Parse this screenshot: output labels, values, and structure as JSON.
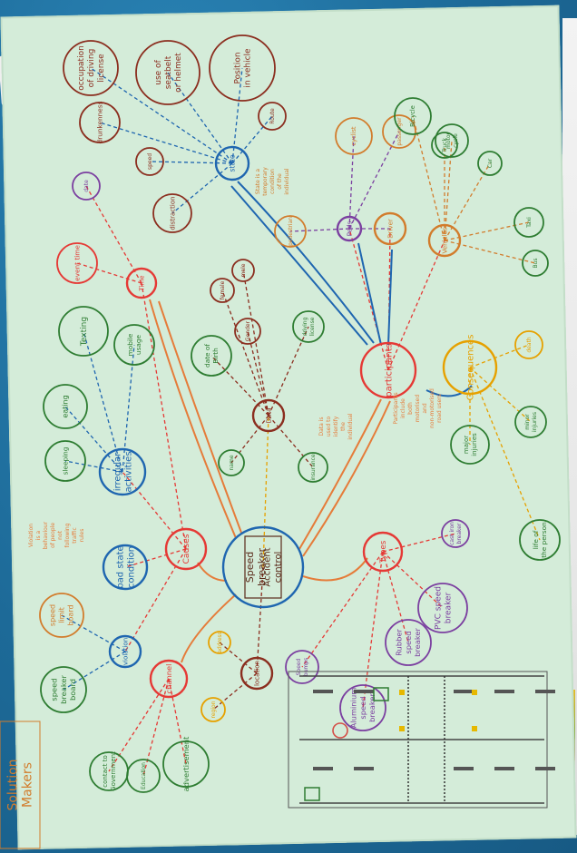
{
  "photo": {
    "subject": "Hand-drawn mind map poster on green paper",
    "device_label": "ⓜ"
  },
  "mindmap": {
    "center_title": "Speed breaker Accident control",
    "main_nodes": [
      {
        "key": "causes",
        "label": "Causes",
        "color": "#e53935"
      },
      {
        "key": "types",
        "label": "Types",
        "color": "#e53935"
      },
      {
        "key": "participants",
        "label": "participants",
        "color": "#e53935"
      },
      {
        "key": "consequences",
        "label": "Consequences",
        "color": "#e6a100"
      },
      {
        "key": "channel",
        "label": "channel",
        "color": "#e53935"
      },
      {
        "key": "location",
        "label": "location",
        "color": "#8b2e1f"
      },
      {
        "key": "data",
        "label": "Data",
        "color": "#8b2e1f"
      },
      {
        "key": "time",
        "label": "Time",
        "color": "#e53935"
      },
      {
        "key": "state",
        "label": "state",
        "color": "#1f66b0"
      },
      {
        "key": "peds",
        "label": "Peds",
        "color": "#7b3fa0"
      },
      {
        "key": "driver",
        "label": "Driver",
        "color": "#d27c2c"
      },
      {
        "key": "vehicles",
        "label": "Vehicles",
        "color": "#d27c2c"
      },
      {
        "key": "irregular",
        "label": "irregular activities",
        "color": "#1f66b0"
      },
      {
        "key": "badstate",
        "label": "bad state condition",
        "color": "#1f66b0"
      },
      {
        "key": "violation",
        "label": "violation",
        "color": "#1f66b0"
      }
    ],
    "leaf_nodes": [
      {
        "label": "Position in vehicle",
        "color": "#8b2e1f"
      },
      {
        "label": "use of seatbelt or helmet",
        "color": "#8b2e1f"
      },
      {
        "label": "occupation of driving license",
        "color": "#8b2e1f"
      },
      {
        "label": "Route",
        "color": "#8b2e1f"
      },
      {
        "label": "speed",
        "color": "#8b2e1f"
      },
      {
        "label": "drunkenness",
        "color": "#8b2e1f"
      },
      {
        "label": "distraction",
        "color": "#8b2e1f"
      },
      {
        "label": "date",
        "color": "#7b3fa0"
      },
      {
        "label": "event time",
        "color": "#e53935"
      },
      {
        "label": "Texting",
        "color": "#2e7d32"
      },
      {
        "label": "mobile usage",
        "color": "#2e7d32"
      },
      {
        "label": "eating",
        "color": "#2e7d32"
      },
      {
        "label": "sleeping",
        "color": "#2e7d32"
      },
      {
        "label": "male",
        "color": "#8b2e1f"
      },
      {
        "label": "female",
        "color": "#8b2e1f"
      },
      {
        "label": "Gender",
        "color": "#8b2e1f"
      },
      {
        "label": "date of Birth",
        "color": "#2e7d32"
      },
      {
        "label": "name",
        "color": "#2e7d32"
      },
      {
        "label": "driving license",
        "color": "#2e7d32"
      },
      {
        "label": "insurance",
        "color": "#2e7d32"
      },
      {
        "label": "pedestrian",
        "color": "#d27c2c"
      },
      {
        "label": "cyclist",
        "color": "#d27c2c"
      },
      {
        "label": "passenger",
        "color": "#d27c2c"
      },
      {
        "label": "Bicycle",
        "color": "#2e7d32"
      },
      {
        "label": "Truck",
        "color": "#2e7d32"
      },
      {
        "label": "motor cycle",
        "color": "#2e7d32"
      },
      {
        "label": "Car",
        "color": "#2e7d32"
      },
      {
        "label": "Taxi",
        "color": "#2e7d32"
      },
      {
        "label": "Bus",
        "color": "#2e7d32"
      },
      {
        "label": "death",
        "color": "#e6a100"
      },
      {
        "label": "minor injuries",
        "color": "#2e7d32"
      },
      {
        "label": "major injuries",
        "color": "#2e7d32"
      },
      {
        "label": "life of the person",
        "color": "#2e7d32"
      },
      {
        "label": "speed limit board",
        "color": "#d27c2c"
      },
      {
        "label": "speed breaker board",
        "color": "#2e7d32"
      },
      {
        "label": "Speed bumps",
        "color": "#7b3fa0"
      },
      {
        "label": "Aluminium speed breaker",
        "color": "#7b3fa0"
      },
      {
        "label": "Rubber speed breaker",
        "color": "#7b3fa0"
      },
      {
        "label": "PVC speed breaker",
        "color": "#7b3fa0"
      },
      {
        "label": "cast iron breaker",
        "color": "#7b3fa0"
      },
      {
        "label": "advertisement",
        "color": "#2e7d32"
      },
      {
        "label": "Education",
        "color": "#2e7d32"
      },
      {
        "label": "contact to Government",
        "color": "#2e7d32"
      },
      {
        "label": "address",
        "color": "#e6a100"
      },
      {
        "label": "region",
        "color": "#e6a100"
      }
    ],
    "notes": [
      "Violation is a behaviour of people not following traffic rules",
      "Participants include both motorised and non-motorised road users",
      "State is a temporary condition of the individual",
      "Data is used to identify the individual"
    ],
    "signature": "Solution Makers"
  },
  "palette": {
    "paper": "#d4ecd9",
    "background": "#1d6a98",
    "red": "#e53935",
    "blue": "#1f66b0",
    "green": "#2e7d32",
    "orange": "#d27c2c",
    "purple": "#7b3fa0"
  }
}
